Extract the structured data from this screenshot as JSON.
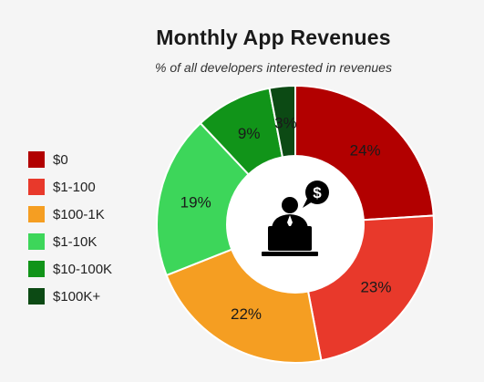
{
  "chart_data": {
    "type": "pie",
    "title": "Monthly App Revenues",
    "subtitle": "% of all developers interested in revenues",
    "categories": [
      "$0",
      "$1-100",
      "$100-1K",
      "$1-10K",
      "$10-100K",
      "$100K+"
    ],
    "values": [
      24,
      23,
      22,
      19,
      9,
      3
    ],
    "labels": [
      "24%",
      "23%",
      "22%",
      "19%",
      "9%",
      "3%"
    ],
    "colors": [
      "#b20000",
      "#e8392b",
      "#f59e22",
      "#3dd65a",
      "#119419",
      "#0c4a14"
    ],
    "legend_position": "left",
    "center_icon": "developer-laptop-dollar-icon"
  }
}
